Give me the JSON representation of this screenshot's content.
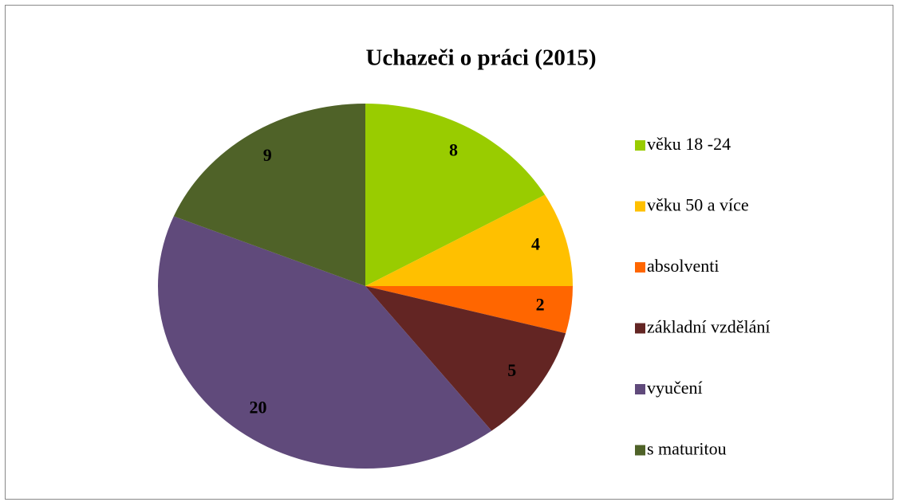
{
  "chart_data": {
    "type": "pie",
    "title": "Uchazeči o práci (2015)",
    "categories": [
      "věku 18 -24",
      "věku 50 a více",
      "absolventi",
      "základní vzdělání",
      "vyučení",
      "s maturitou"
    ],
    "values": [
      8,
      4,
      2,
      5,
      20,
      9
    ],
    "colors": [
      "#99cc00",
      "#ffc000",
      "#ff6600",
      "#632523",
      "#604a7b",
      "#4f6228"
    ],
    "legend": "right"
  }
}
